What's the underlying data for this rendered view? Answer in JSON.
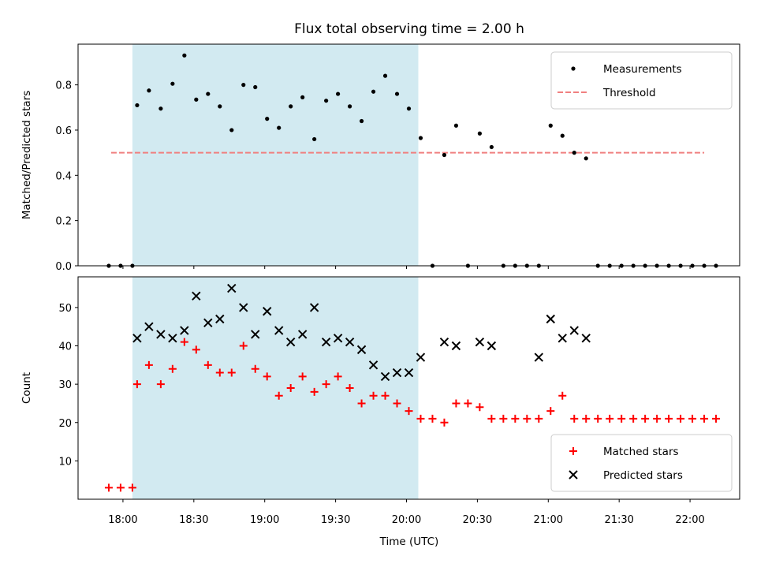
{
  "figure": {
    "title": "Flux total observing time = 2.00 h",
    "xlabel": "Time (UTC)",
    "x_tick_labels": [
      "18:00",
      "18:30",
      "19:00",
      "19:30",
      "20:00",
      "20:30",
      "21:00",
      "21:30",
      "22:00"
    ]
  },
  "chart_data": [
    {
      "type": "scatter",
      "ylabel": "Matched/Predicted stars",
      "xlim": [
        "17:41",
        "22:21"
      ],
      "ylim": [
        0,
        0.98
      ],
      "y_ticks": [
        0.0,
        0.2,
        0.4,
        0.6,
        0.8
      ],
      "y_tick_labels": [
        "0.0",
        "0.2",
        "0.4",
        "0.6",
        "0.8"
      ],
      "legend_position": "top-right",
      "shaded_span": {
        "start": "18:04",
        "end": "20:05",
        "color": "#add8e6"
      },
      "threshold": {
        "name": "Threshold",
        "value": 0.5,
        "x_range": [
          "17:55",
          "22:06"
        ],
        "color": "#f08080",
        "style": "dashed"
      },
      "series": [
        {
          "name": "Measurements",
          "marker": "dot",
          "color": "#000000",
          "x": [
            "17:54",
            "17:59",
            "18:04",
            "18:06",
            "18:11",
            "18:16",
            "18:21",
            "18:26",
            "18:31",
            "18:36",
            "18:41",
            "18:46",
            "18:51",
            "18:56",
            "19:01",
            "19:06",
            "19:11",
            "19:16",
            "19:21",
            "19:26",
            "19:31",
            "19:36",
            "19:41",
            "19:46",
            "19:51",
            "19:56",
            "20:01",
            "20:06",
            "20:11",
            "20:16",
            "20:21",
            "20:26",
            "20:31",
            "20:36",
            "20:41",
            "20:46",
            "20:51",
            "20:56",
            "21:01",
            "21:06",
            "21:11",
            "21:16",
            "21:21",
            "21:26",
            "21:31",
            "21:36",
            "21:41",
            "21:46",
            "21:51",
            "21:56",
            "22:01",
            "22:06",
            "22:11"
          ],
          "y": [
            0,
            0,
            0,
            0.71,
            0.775,
            0.695,
            0.805,
            0.93,
            0.735,
            0.76,
            0.705,
            0.6,
            0.8,
            0.79,
            0.65,
            0.61,
            0.705,
            0.745,
            0.56,
            0.73,
            0.76,
            0.705,
            0.64,
            0.77,
            0.84,
            0.76,
            0.695,
            0.565,
            0.0,
            0.49,
            0.62,
            0.0,
            0.585,
            0.525,
            0.0,
            0.0,
            0.0,
            0.0,
            0.62,
            0.575,
            0.5,
            0.475,
            0,
            0,
            0,
            0,
            0,
            0,
            0,
            0,
            0,
            0,
            0
          ]
        }
      ]
    },
    {
      "type": "scatter",
      "ylabel": "Count",
      "xlim": [
        "17:41",
        "22:21"
      ],
      "ylim": [
        0,
        58
      ],
      "y_ticks": [
        10,
        20,
        30,
        40,
        50
      ],
      "y_tick_labels": [
        "10",
        "20",
        "30",
        "40",
        "50"
      ],
      "legend_position": "bottom-right",
      "shaded_span": {
        "start": "18:04",
        "end": "20:05",
        "color": "#add8e6"
      },
      "series": [
        {
          "name": "Matched stars",
          "marker": "plus",
          "color": "#ff0000",
          "x": [
            "17:54",
            "17:59",
            "18:04",
            "18:06",
            "18:11",
            "18:16",
            "18:21",
            "18:26",
            "18:31",
            "18:36",
            "18:41",
            "18:46",
            "18:51",
            "18:56",
            "19:01",
            "19:06",
            "19:11",
            "19:16",
            "19:21",
            "19:26",
            "19:31",
            "19:36",
            "19:41",
            "19:46",
            "19:51",
            "19:56",
            "20:01",
            "20:06",
            "20:11",
            "20:16",
            "20:21",
            "20:26",
            "20:31",
            "20:36",
            "20:41",
            "20:46",
            "20:51",
            "20:56",
            "21:01",
            "21:06",
            "21:11",
            "21:16",
            "21:21",
            "21:26",
            "21:31",
            "21:36",
            "21:41",
            "21:46",
            "21:51",
            "21:56",
            "22:01",
            "22:06",
            "22:11"
          ],
          "y": [
            3,
            3,
            3,
            30,
            35,
            30,
            34,
            41,
            39,
            35,
            33,
            33,
            40,
            34,
            32,
            27,
            29,
            32,
            28,
            30,
            32,
            29,
            25,
            27,
            27,
            25,
            23,
            21,
            21,
            20,
            25,
            25,
            24,
            21,
            21,
            21,
            21,
            21,
            23,
            27,
            21,
            21,
            21,
            21,
            21,
            21,
            21,
            21,
            21,
            21,
            21,
            21,
            21
          ]
        },
        {
          "name": "Predicted stars",
          "marker": "x",
          "color": "#000000",
          "x": [
            "18:06",
            "18:11",
            "18:16",
            "18:21",
            "18:26",
            "18:31",
            "18:36",
            "18:41",
            "18:46",
            "18:51",
            "18:56",
            "19:01",
            "19:06",
            "19:11",
            "19:16",
            "19:21",
            "19:26",
            "19:31",
            "19:36",
            "19:41",
            "19:46",
            "19:51",
            "19:56",
            "20:01",
            "20:06",
            "20:16",
            "20:21",
            "20:31",
            "20:36",
            "20:56",
            "21:01",
            "21:06",
            "21:11",
            "21:16"
          ],
          "y": [
            42,
            45,
            43,
            42,
            44,
            53,
            46,
            47,
            55,
            50,
            43,
            49,
            44,
            41,
            43,
            50,
            41,
            42,
            41,
            39,
            35,
            32,
            33,
            33,
            37,
            41,
            40,
            41,
            40,
            37,
            47,
            42,
            44,
            42
          ]
        }
      ]
    }
  ]
}
